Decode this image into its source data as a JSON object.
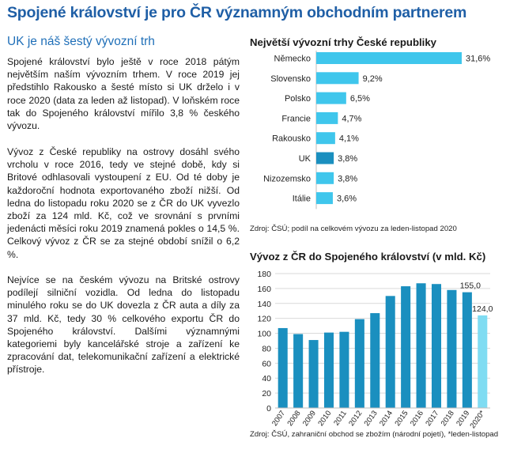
{
  "page": {
    "title": "Spojené království je pro ČR významným obchodním partnerem",
    "subtitle": "UK je náš šestý vývozní trh",
    "paragraphs": [
      "Spojené království bylo ještě v roce 2018 pátým největším naším vývozním trhem. V roce 2019 jej předstihlo Rakousko a šesté místo si UK drželo i v roce 2020 (data za leden až listopad). V loňském roce tak do Spojeného království mířilo 3,8 % českého vývozu.",
      "Vývoz z České republiky na ostrovy dosáhl svého vrcholu v roce 2016, tedy ve stejné době, kdy si Britové odhlasovali vystoupení z EU. Od té doby je každoroční hodnota exportovaného zboží nižší. Od ledna do listopadu roku 2020 se z ČR do UK vyvezlo zboží za 124 mld. Kč, což ve srovnání s prvními jedenácti měsíci roku 2019 znamená pokles o 14,5 %. Celkový vývoz z ČR se za stejné období snížil o 6,2 %.",
      "Nejvíce se na českém vývozu na Britské ostrovy podílejí silniční vozidla. Od ledna do listopadu minulého roku se do UK dovezla z ČR auta a díly za 37 mld. Kč, tedy 30 % celkového exportu ČR do Spojeného království. Dalšími významnými kategoriemi byly kancelářské stroje a zařízení ke zpracování dat, telekomunikační zařízení a elektrické přístroje."
    ]
  },
  "colors": {
    "title": "#1f5fa6",
    "bar_light": "#3fc6ec",
    "bar_highlight": "#1a8fbf",
    "bar_dark": "#1a8fbf",
    "bar_forecast": "#7fdcf2"
  },
  "chart_data": [
    {
      "type": "bar",
      "orientation": "horizontal",
      "title": "Největší vývozní trhy České republiky",
      "categories": [
        "Německo",
        "Slovensko",
        "Polsko",
        "Francie",
        "Rakousko",
        "UK",
        "Nizozemsko",
        "Itálie"
      ],
      "values": [
        31.6,
        9.2,
        6.5,
        4.7,
        4.1,
        3.8,
        3.8,
        3.6
      ],
      "labels": [
        "31,6%",
        "9,2%",
        "6,5%",
        "4,7%",
        "4,1%",
        "3,8%",
        "3,8%",
        "3,6%"
      ],
      "highlight": "UK",
      "source": "Zdroj: ČSÚ; podíl na celkovém vývozu za leden-listopad 2020"
    },
    {
      "type": "bar",
      "title": "Vývoz z ČR do Spojeného království (v mld. Kč)",
      "categories": [
        "2007",
        "2008",
        "2009",
        "2010",
        "2011",
        "2012",
        "2013",
        "2014",
        "2015",
        "2016",
        "2017",
        "2018",
        "2019",
        "2020*"
      ],
      "values": [
        107,
        99,
        91,
        101,
        102,
        119,
        127,
        150,
        163,
        167,
        166,
        158,
        155,
        124
      ],
      "data_labels": {
        "2019": "155,0",
        "2020*": "124,0"
      },
      "ylim": [
        0,
        180
      ],
      "yticks": [
        0,
        20,
        40,
        60,
        80,
        100,
        120,
        140,
        160,
        180
      ],
      "grid": true,
      "source": "Zdroj: ČSÚ, zahraniční obchod se zbožím (národní pojetí), *leden-listopad"
    }
  ]
}
